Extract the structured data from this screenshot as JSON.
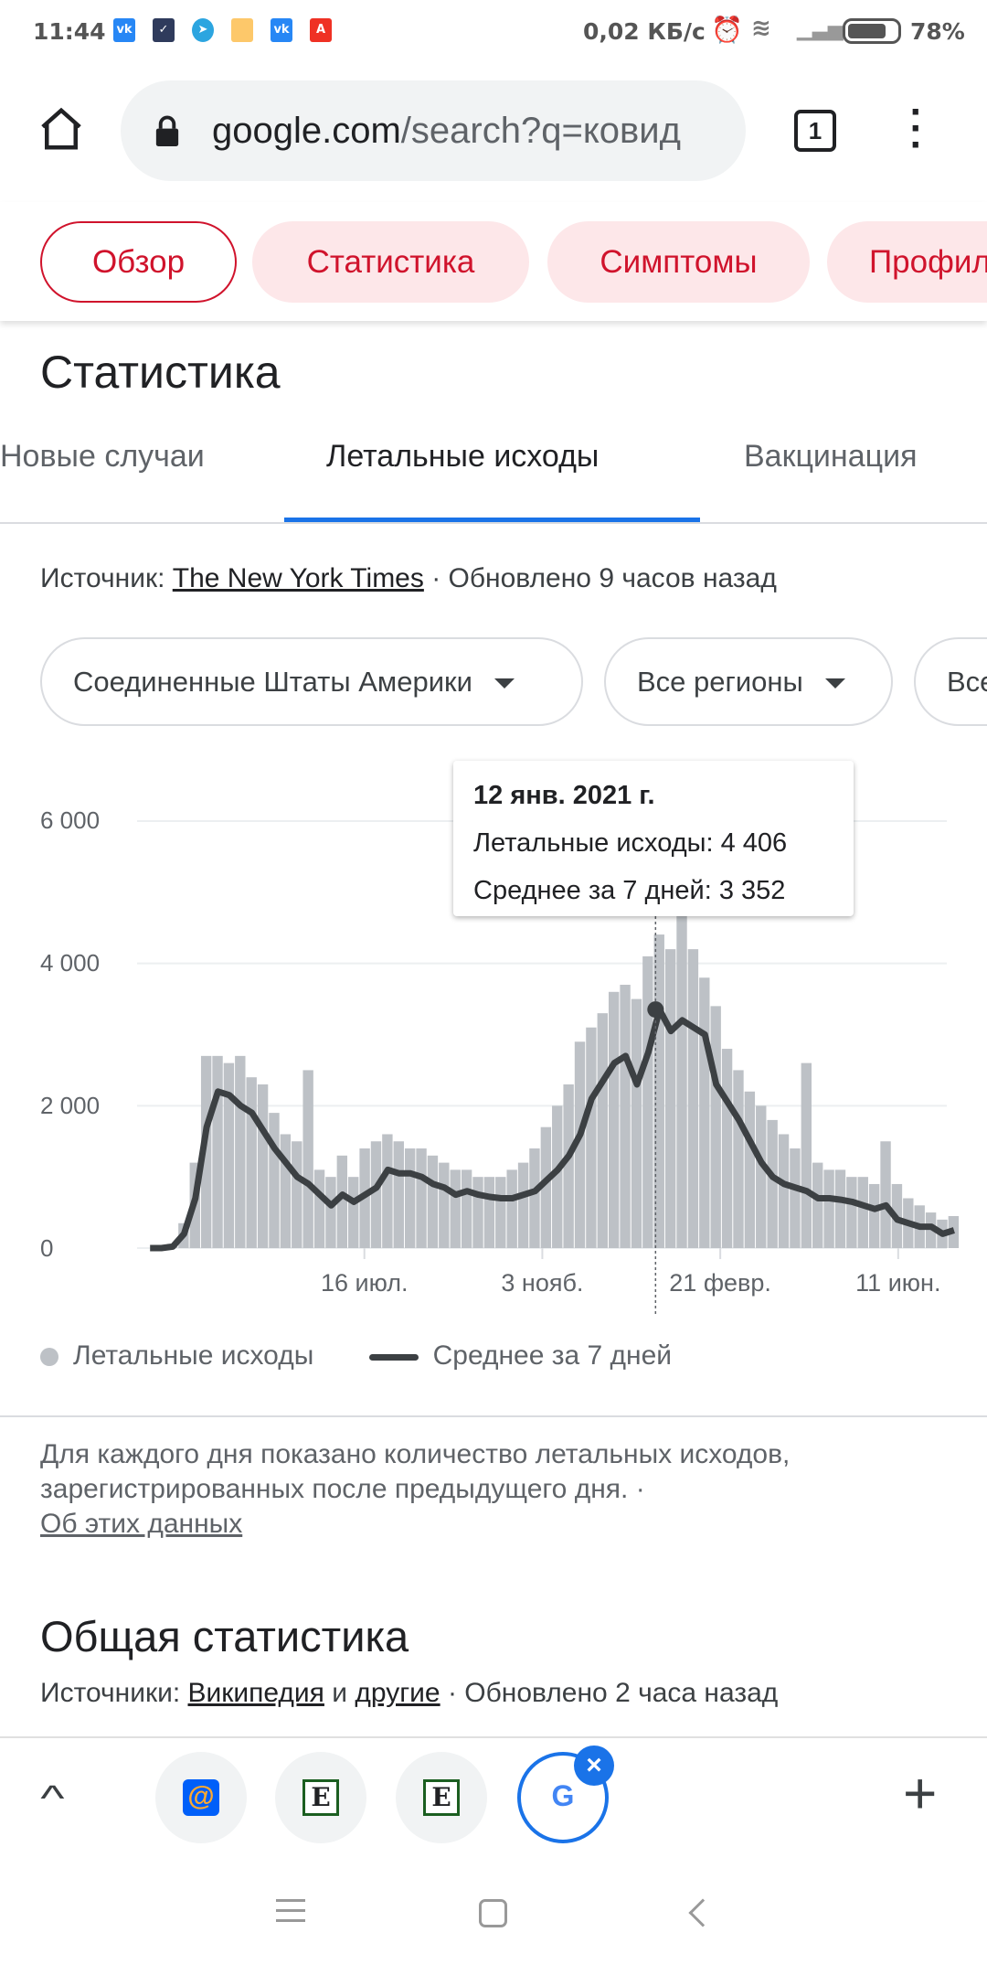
{
  "status": {
    "time": "11:44",
    "speed": "0,02 КБ/с",
    "battery": "78%",
    "battery_level": 0.78,
    "notif_icons": [
      "vk-icon",
      "task-icon",
      "telegram-icon",
      "notes-icon",
      "vk-icon",
      "alfa-bank-icon"
    ]
  },
  "browser": {
    "url_host": "google.com",
    "url_rest": "/search?q=ковид",
    "tab_count": "1"
  },
  "chips": [
    {
      "label": "Обзор",
      "active": true
    },
    {
      "label": "Статистика"
    },
    {
      "label": "Симптомы"
    },
    {
      "label": "Профилактика"
    }
  ],
  "section": {
    "title": "Статистика",
    "tabs": [
      "Новые случаи",
      "Летальные исходы",
      "Вакцинация"
    ],
    "active_tab": 1,
    "source_prefix": "Источник: ",
    "source_link": "The New York Times",
    "source_suffix": " · Обновлено 9 часов назад",
    "dropdowns": [
      "Соединенные Штаты Америки",
      "Все регионы",
      "Все"
    ]
  },
  "tooltip": {
    "date": "12 янв. 2021 г.",
    "line1": "Летальные исходы: 4 406",
    "line2": "Среднее за 7 дней: 3 352"
  },
  "legend": {
    "daily": "Летальные исходы",
    "avg": "Среднее за 7 дней"
  },
  "note": {
    "text": "Для каждого дня показано количество летальных исходов, зарегистрированных после предыдущего дня.",
    "dot": " · ",
    "link": "Об этих данных"
  },
  "general": {
    "title": "Общая статистика",
    "prefix": "Источники: ",
    "link1": "Википедия",
    "mid": " и ",
    "link2": "другие",
    "suffix": " · Обновлено 2 часа назад"
  },
  "colors": {
    "accent": "#d0132c",
    "chip_bg": "#fde7e9",
    "tab_underline": "#1a73e8",
    "bars": "#bdc1c6",
    "avg_line": "#3c4043"
  },
  "chart_data": {
    "type": "bar+line",
    "x_start": "2020-03-02",
    "x_step_days": 7,
    "x_end": "2021-07-12",
    "ylim": [
      0,
      6000
    ],
    "yticks": [
      "0",
      "2 000",
      "4 000",
      "6 000"
    ],
    "xticks": [
      {
        "date": "2020-07-16",
        "label": "16 июл."
      },
      {
        "date": "2020-11-03",
        "label": "3 нояб."
      },
      {
        "date": "2021-02-21",
        "label": "21 февр."
      },
      {
        "date": "2021-06-11",
        "label": "11 июн."
      }
    ],
    "grid": true,
    "legend_position": "bottom",
    "highlight": {
      "date": "2021-01-12",
      "deaths": 4406,
      "avg": 3352
    },
    "series": [
      {
        "name": "Среднее за 7 дней",
        "type": "line",
        "values": [
          0,
          0,
          20,
          200,
          700,
          1700,
          2200,
          2150,
          2000,
          1900,
          1650,
          1400,
          1200,
          1000,
          900,
          750,
          600,
          750,
          650,
          750,
          850,
          1100,
          1050,
          1050,
          1000,
          900,
          850,
          750,
          800,
          750,
          720,
          700,
          700,
          750,
          800,
          950,
          1100,
          1300,
          1600,
          2100,
          2350,
          2600,
          2700,
          2300,
          2750,
          3350,
          3050,
          3200,
          3100,
          3000,
          2300,
          2050,
          1800,
          1500,
          1200,
          1000,
          900,
          850,
          800,
          700,
          700,
          680,
          650,
          600,
          550,
          600,
          400,
          350,
          300,
          300,
          200,
          250
        ]
      },
      {
        "name": "Летальные исходы",
        "type": "bar",
        "values": [
          0,
          5,
          60,
          350,
          1200,
          2700,
          2700,
          2600,
          2700,
          2400,
          2300,
          1900,
          1600,
          1500,
          2500,
          1100,
          1000,
          1300,
          1000,
          1400,
          1500,
          1600,
          1500,
          1400,
          1400,
          1300,
          1200,
          1100,
          1100,
          1000,
          1000,
          1000,
          1100,
          1200,
          1400,
          1700,
          2000,
          2300,
          2900,
          3100,
          3300,
          3600,
          3700,
          3500,
          4100,
          4406,
          4200,
          5500,
          4200,
          3800,
          3400,
          2800,
          2500,
          2200,
          2000,
          1800,
          1600,
          1400,
          2600,
          1200,
          1100,
          1100,
          1000,
          1000,
          900,
          1500,
          900,
          700,
          600,
          500,
          400,
          450
        ]
      }
    ]
  }
}
